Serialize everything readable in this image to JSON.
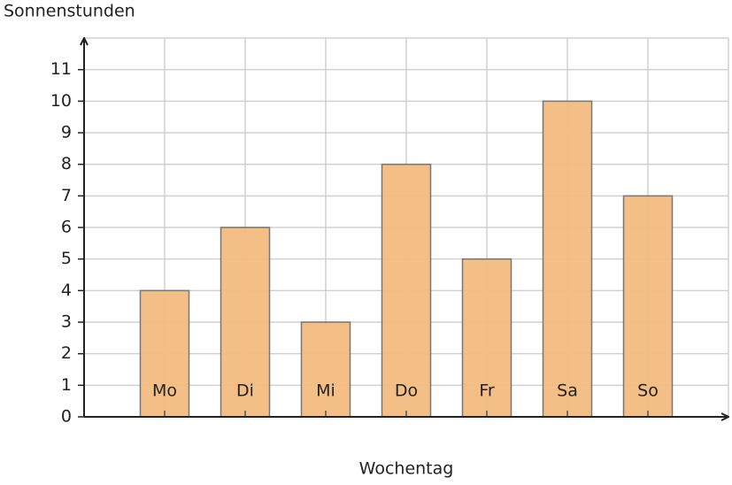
{
  "chart_data": {
    "type": "bar",
    "y_label": "Sonnenstunden",
    "x_label": "Wochentag",
    "categories": [
      "Mo",
      "Di",
      "Mi",
      "Do",
      "Fr",
      "Sa",
      "So"
    ],
    "values": [
      4,
      6,
      3,
      8,
      5,
      10,
      7
    ],
    "color": "#f2bc80",
    "ylim": [
      0,
      12
    ],
    "yticks": [
      0,
      1,
      2,
      3,
      4,
      5,
      6,
      7,
      8,
      9,
      10,
      11
    ],
    "grid": true
  }
}
